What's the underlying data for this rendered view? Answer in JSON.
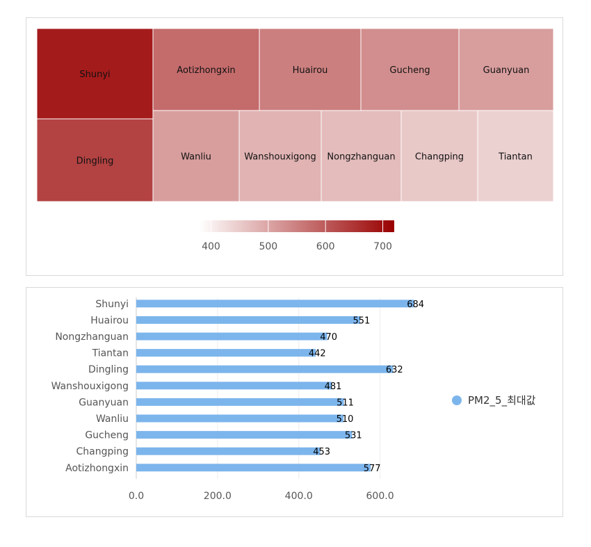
{
  "chart_data": [
    {
      "type": "treemap",
      "items": [
        {
          "name": "Shunyi",
          "value": 684
        },
        {
          "name": "Dingling",
          "value": 632
        },
        {
          "name": "Aotizhongxin",
          "value": 577
        },
        {
          "name": "Huairou",
          "value": 551
        },
        {
          "name": "Gucheng",
          "value": 531
        },
        {
          "name": "Guanyuan",
          "value": 511
        },
        {
          "name": "Wanliu",
          "value": 510
        },
        {
          "name": "Wanshouxigong",
          "value": 481
        },
        {
          "name": "Nongzhanguan",
          "value": 470
        },
        {
          "name": "Changping",
          "value": 453
        },
        {
          "name": "Tiantan",
          "value": 442
        }
      ],
      "colorscale": {
        "min": 380,
        "max": 720,
        "min_color": "#ffffff",
        "max_color": "#990000",
        "ticks": [
          "400",
          "500",
          "600",
          "700"
        ]
      }
    },
    {
      "type": "bar",
      "orientation": "horizontal",
      "categories": [
        "Shunyi",
        "Huairou",
        "Nongzhanguan",
        "Tiantan",
        "Dingling",
        "Wanshouxigong",
        "Guanyuan",
        "Wanliu",
        "Gucheng",
        "Changping",
        "Aotizhongxin"
      ],
      "series": [
        {
          "name": "PM2_5_최대값",
          "values": [
            684,
            551,
            470,
            442,
            632,
            481,
            511,
            510,
            531,
            453,
            577
          ],
          "color": "#7cb5ec"
        }
      ],
      "xlim": [
        0,
        700
      ],
      "xticks": [
        "0.0",
        "200.0",
        "400.0",
        "600.0"
      ],
      "data_labels": [
        "684",
        "551",
        "470",
        "442",
        "632",
        "481",
        "511",
        "510",
        "531",
        "453",
        "577"
      ],
      "legend": "right"
    }
  ]
}
